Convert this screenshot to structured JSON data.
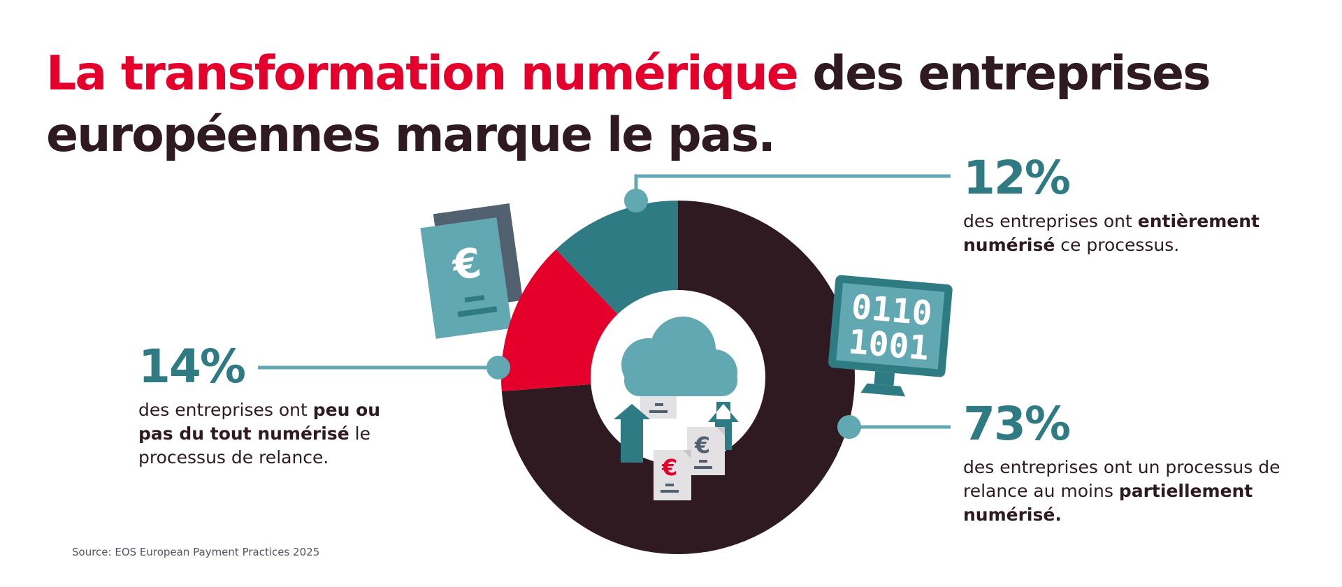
{
  "title": {
    "accent": "La transformation numérique",
    "rest": " des entreprises européennes marque le pas."
  },
  "stats": {
    "full": {
      "pct": "12%",
      "pre": "des entreprises ont ",
      "bold": "entièrement numérisé",
      "post": " ce processus."
    },
    "none": {
      "pct": "14%",
      "pre": "des entreprises ont ",
      "bold": "peu ou pas du tout numérisé",
      "post": " le processus de relance."
    },
    "partial": {
      "pct": "73%",
      "pre": "des entreprises ont un processus de relance au moins ",
      "bold": "partiellement numérisé.",
      "post": ""
    }
  },
  "icons": {
    "euro": "€",
    "binary_top": "0110",
    "binary_bottom": "1001"
  },
  "source": "Source: EOS European Payment Practices 2025",
  "colors": {
    "dark": "#2f1a22",
    "red": "#e4002b",
    "teal": "#2e7b83",
    "light_teal": "#62a8b2",
    "slate": "#516170"
  },
  "chart_data": {
    "type": "pie",
    "variant": "donut",
    "start_angle_deg": 0,
    "direction": "clockwise",
    "series": [
      {
        "label": "73%",
        "value": 73,
        "color": "#2f1a22"
      },
      {
        "label": "14%",
        "value": 14,
        "color": "#e4002b"
      },
      {
        "label": "12%",
        "value": 12,
        "color": "#2e7b83"
      }
    ]
  }
}
